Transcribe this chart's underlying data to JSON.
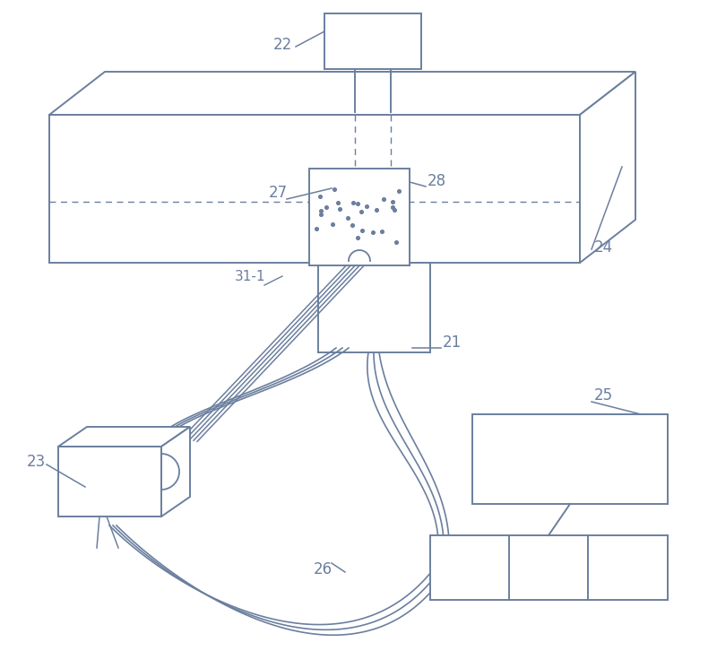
{
  "bg_color": "#ffffff",
  "line_color": "#6b7f9e",
  "label_color": "#6b7f9e",
  "line_width": 1.4,
  "label_fontsize": 12
}
